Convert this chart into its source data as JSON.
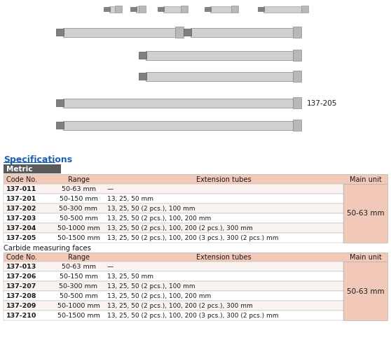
{
  "title": "Specifications",
  "metric_label": "Metric",
  "header_row": [
    "Code No.",
    "Range",
    "Extension tubes",
    "Main unit"
  ],
  "rows1": [
    [
      "137-011",
      "50-63 mm",
      "—"
    ],
    [
      "137-201",
      "50-150 mm",
      "13, 25, 50 mm"
    ],
    [
      "137-202",
      "50-300 mm",
      "13, 25, 50 (2 pcs.), 100 mm"
    ],
    [
      "137-203",
      "50-500 mm",
      "13, 25, 50 (2 pcs.), 100, 200 mm"
    ],
    [
      "137-204",
      "50-1000 mm",
      "13, 25, 50 (2 pcs.), 100, 200 (2 pcs.), 300 mm"
    ],
    [
      "137-205",
      "50-1500 mm",
      "13, 25, 50 (2 pcs.), 100, 200 (3 pcs.), 300 (2 pcs.) mm"
    ]
  ],
  "main_unit1": "50-63 mm",
  "section2_label": "Carbide measuring faces",
  "rows2": [
    [
      "137-013",
      "50-63 mm",
      "—"
    ],
    [
      "137-206",
      "50-150 mm",
      "13, 25, 50 mm"
    ],
    [
      "137-207",
      "50-300 mm",
      "13, 25, 50 (2 pcs.), 100 mm"
    ],
    [
      "137-208",
      "50-500 mm",
      "13, 25, 50 (2 pcs.), 100, 200 mm"
    ],
    [
      "137-209",
      "50-1000 mm",
      "13, 25, 50 (2 pcs.), 100, 200 (2 pcs.), 300 mm"
    ],
    [
      "137-210",
      "50-1500 mm",
      "13, 25, 50 (2 pcs.), 100, 200 (3 pcs.), 300 (2 pcs.) mm"
    ]
  ],
  "main_unit2": "50-63 mm",
  "header_bg": "#f2c9b8",
  "main_unit_bg": "#f2c9b8",
  "row_bg_alt": "#faf3f0",
  "row_bg_plain": "#ffffff",
  "metric_bg": "#5a5a5a",
  "metric_fg": "#ffffff",
  "title_color": "#1a5fb4",
  "border_color": "#aaaaaa",
  "text_color": "#1a1a1a",
  "image_label": "137-205",
  "background_color": "#ffffff",
  "mic_body_color": "#d0d0d0",
  "mic_connector_color": "#808080",
  "mic_end_color": "#b8b8b8",
  "mic_edge_color": "#888888"
}
